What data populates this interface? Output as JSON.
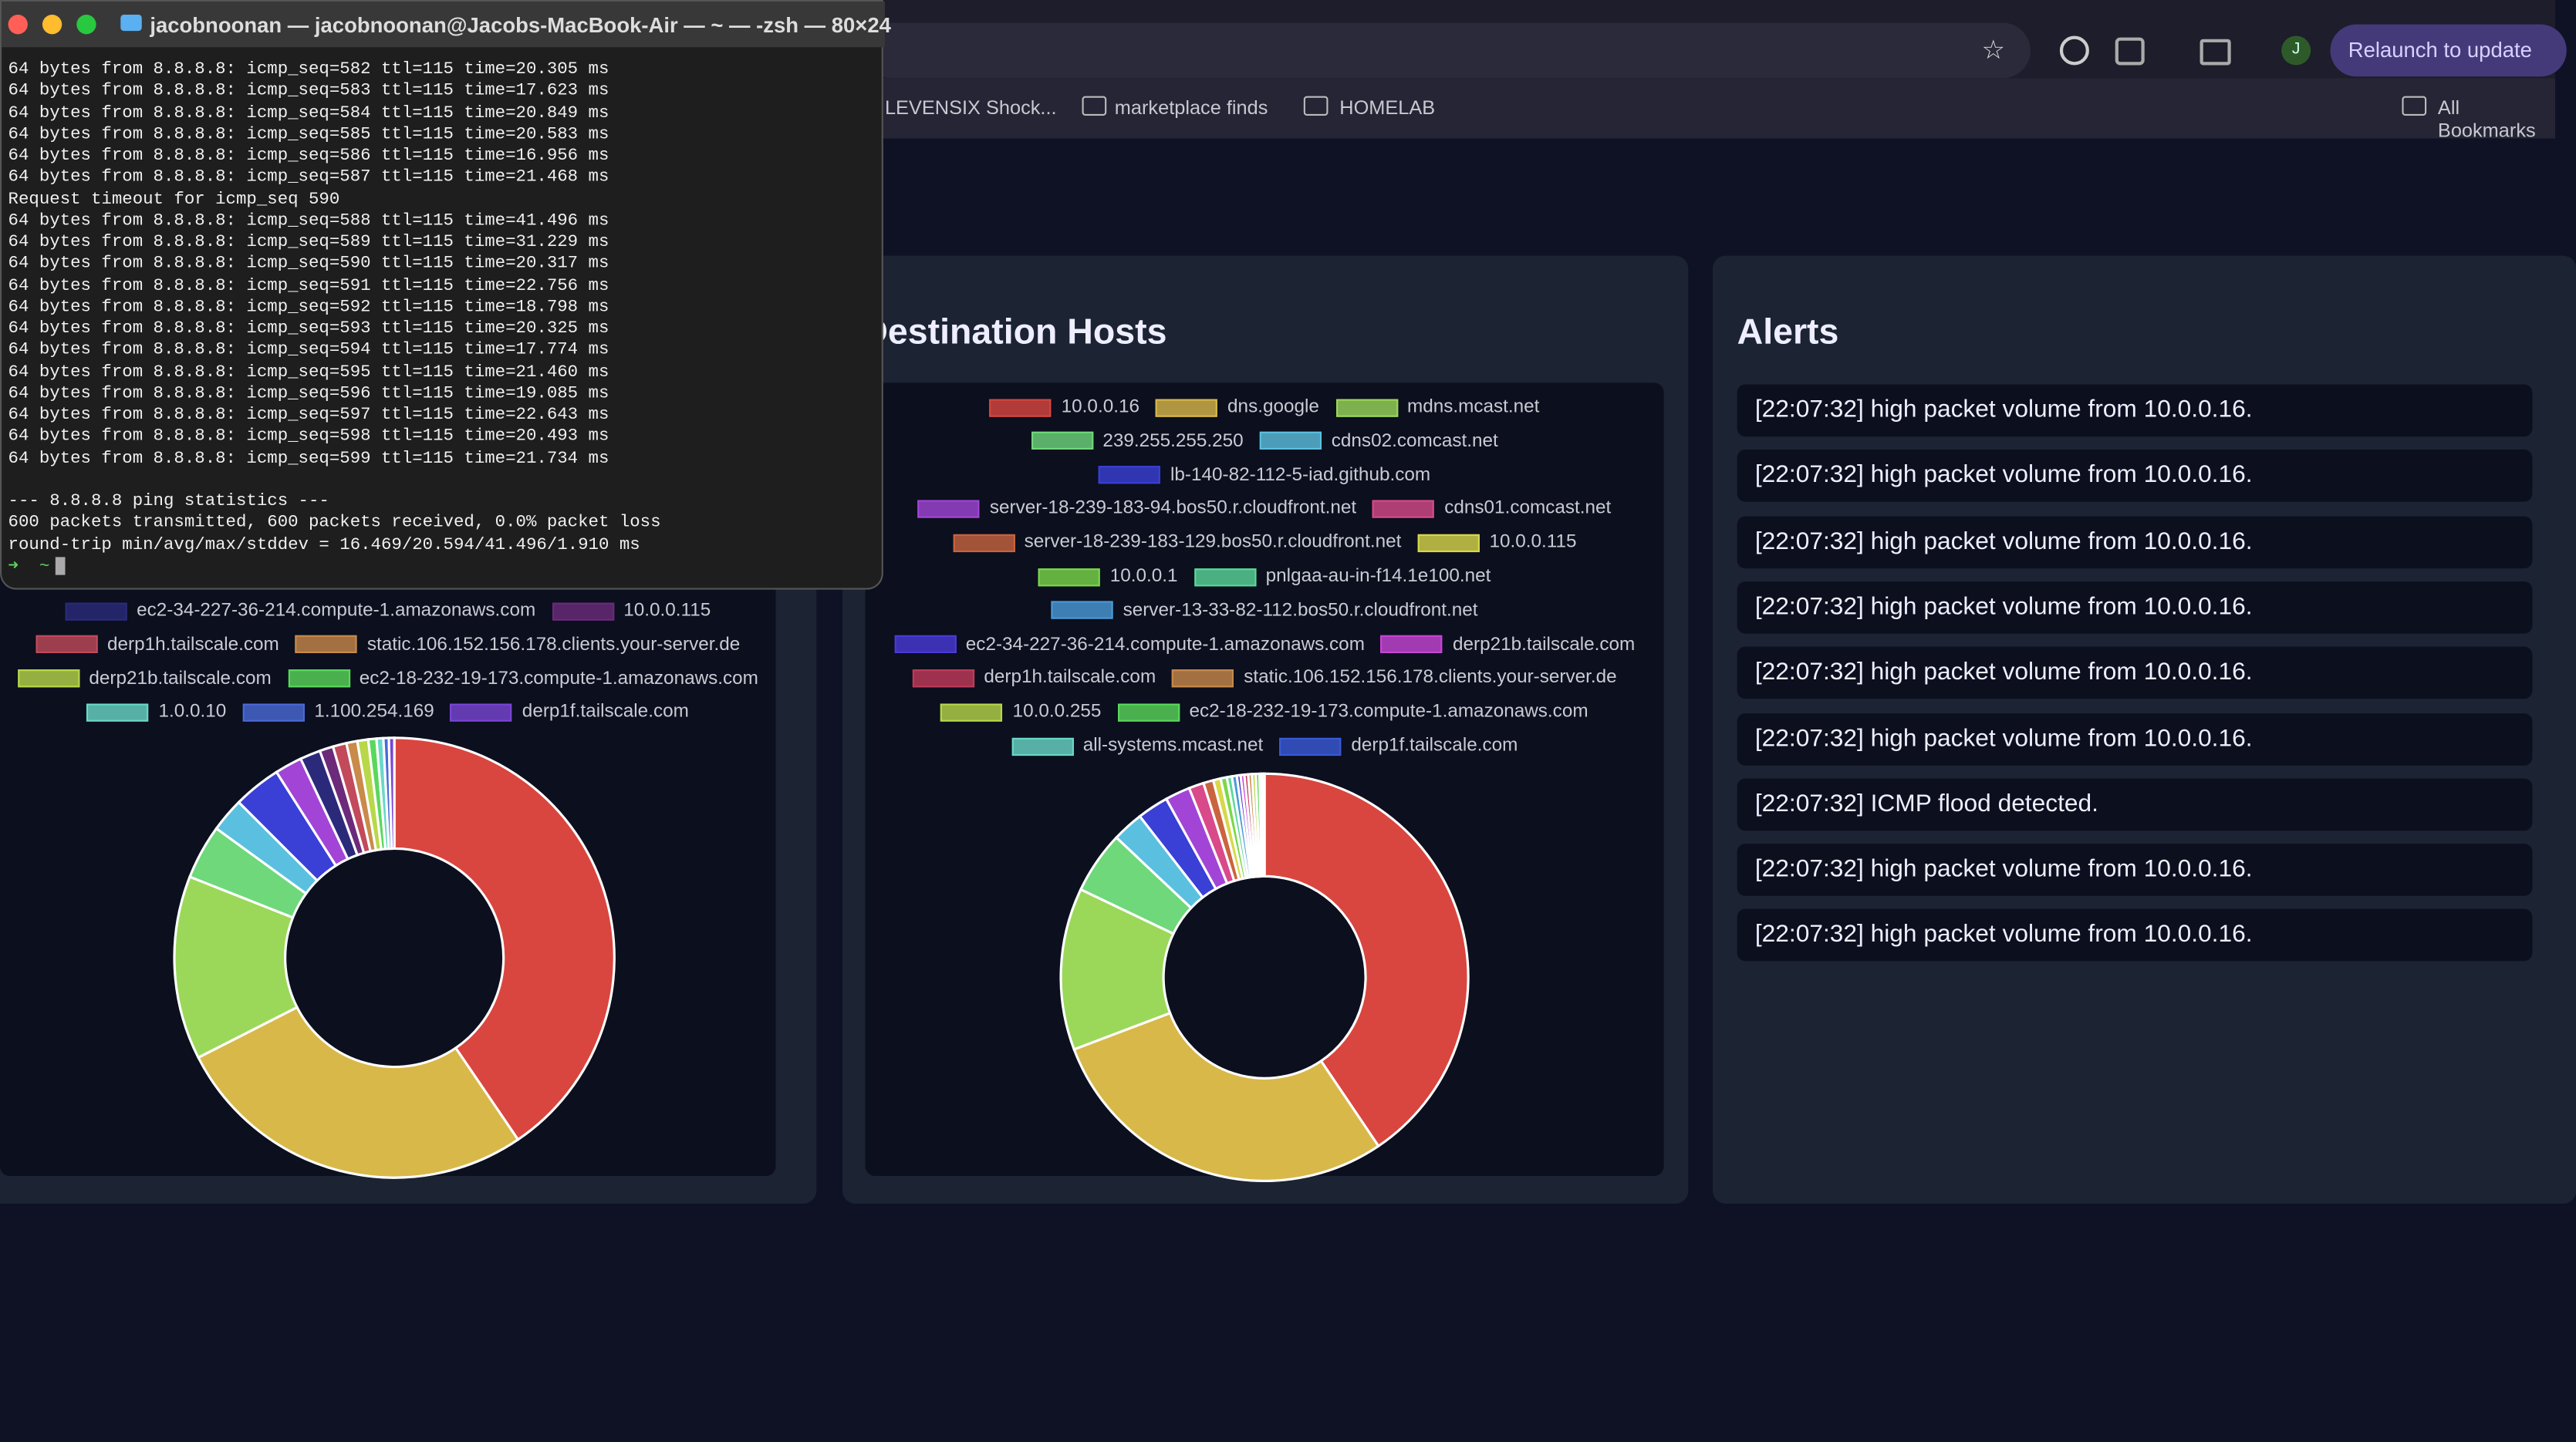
{
  "browser": {
    "bookmarks": [
      "LEVENSIX Shock...",
      "marketplace finds",
      "HOMELAB",
      "All Bookmarks"
    ],
    "avatar": "J",
    "relaunch": "Relaunch to update"
  },
  "terminal": {
    "title": "jacobnoonan — jacobnoonan@Jacobs-MacBook-Air — ~ — -zsh — 80×24",
    "lines": [
      "64 bytes from 8.8.8.8: icmp_seq=582 ttl=115 time=20.305 ms",
      "64 bytes from 8.8.8.8: icmp_seq=583 ttl=115 time=17.623 ms",
      "64 bytes from 8.8.8.8: icmp_seq=584 ttl=115 time=20.849 ms",
      "64 bytes from 8.8.8.8: icmp_seq=585 ttl=115 time=20.583 ms",
      "64 bytes from 8.8.8.8: icmp_seq=586 ttl=115 time=16.956 ms",
      "64 bytes from 8.8.8.8: icmp_seq=587 ttl=115 time=21.468 ms",
      "Request timeout for icmp_seq 590",
      "64 bytes from 8.8.8.8: icmp_seq=588 ttl=115 time=41.496 ms",
      "64 bytes from 8.8.8.8: icmp_seq=589 ttl=115 time=31.229 ms",
      "64 bytes from 8.8.8.8: icmp_seq=590 ttl=115 time=20.317 ms",
      "64 bytes from 8.8.8.8: icmp_seq=591 ttl=115 time=22.756 ms",
      "64 bytes from 8.8.8.8: icmp_seq=592 ttl=115 time=18.798 ms",
      "64 bytes from 8.8.8.8: icmp_seq=593 ttl=115 time=20.325 ms",
      "64 bytes from 8.8.8.8: icmp_seq=594 ttl=115 time=17.774 ms",
      "64 bytes from 8.8.8.8: icmp_seq=595 ttl=115 time=21.460 ms",
      "64 bytes from 8.8.8.8: icmp_seq=596 ttl=115 time=19.085 ms",
      "64 bytes from 8.8.8.8: icmp_seq=597 ttl=115 time=22.643 ms",
      "64 bytes from 8.8.8.8: icmp_seq=598 ttl=115 time=20.493 ms",
      "64 bytes from 8.8.8.8: icmp_seq=599 ttl=115 time=21.734 ms",
      "--- 8.8.8.8 ping statistics ---",
      "600 packets transmitted, 600 packets received, 0.0% packet loss",
      "round-trip min/avg/max/stddev = 16.469/20.594/41.496/1.910 ms"
    ],
    "prompt": "➜  ~"
  },
  "chart_data": [
    {
      "type": "pie",
      "categories": [
        null,
        null,
        null,
        null,
        null,
        null,
        null,
        "ec2-34-227-36-214.compute-1.amazonaws.com",
        "10.0.0.115",
        "derp1h.tailscale.com",
        "static.106.152.156.178.clients.your-server.de",
        "derp21b.tailscale.com",
        "ec2-18-232-19-173.compute-1.amazonaws.com",
        "1.0.0.10",
        "1.100.254.169",
        "derp1f.tailscale.com"
      ],
      "colors": [
        "#d9463f",
        "#d9b84a",
        "#9bd85a",
        "#6ed87a",
        "#5bc0e0",
        "#3a3fd6",
        "#a245d6",
        "#2b2a7a",
        "#6b2a7a",
        "#c24a5a",
        "#c98a4a",
        "#b8d84a",
        "#5ad85a",
        "#6ad8c8",
        "#4a6ad8",
        "#7a45d6"
      ],
      "values": [
        40.5,
        27,
        13.5,
        4,
        2.5,
        3.5,
        2,
        1.5,
        1,
        1,
        0.8,
        0.8,
        0.6,
        0.5,
        0.4,
        0.4
      ]
    },
    {
      "type": "pie",
      "title": "Destination Hosts",
      "categories": [
        "10.0.0.16",
        "dns.google",
        "mdns.mcast.net",
        "239.255.255.250",
        "cdns02.comcast.net",
        "lb-140-82-112-5-iad.github.com",
        "server-18-239-183-94.bos50.r.cloudfront.net",
        "cdns01.comcast.net",
        "server-18-239-183-129.bos50.r.cloudfront.net",
        "10.0.0.115",
        "10.0.0.1",
        "pnlgaa-au-in-f14.1e100.net",
        "server-13-33-82-112.bos50.r.cloudfront.net",
        "ec2-34-227-36-214.compute-1.amazonaws.com",
        "derp21b.tailscale.com",
        "derp1h.tailscale.com",
        "static.106.152.156.178.clients.your-server.de",
        "10.0.0.255",
        "ec2-18-232-19-173.compute-1.amazonaws.com",
        "all-systems.mcast.net",
        "derp1f.tailscale.com"
      ],
      "colors": [
        "#d9463f",
        "#d9b84a",
        "#9bd85a",
        "#6ed87a",
        "#5bc0e0",
        "#3a3fd6",
        "#a245d6",
        "#d84a8a",
        "#c9643f",
        "#d8d84a",
        "#7ad84a",
        "#5ad89a",
        "#4a9ad8",
        "#4a3ad8",
        "#c845d6",
        "#c23a5a",
        "#c98a4a",
        "#b8d84a",
        "#5ad85a",
        "#6ad8c8",
        "#3a5ad8"
      ],
      "values": [
        41,
        29,
        13,
        5,
        2.5,
        2.5,
        2,
        1.2,
        0.8,
        0.6,
        0.5,
        0.4,
        0.4,
        0.3,
        0.3,
        0.3,
        0.3,
        0.3,
        0.3,
        0.2,
        0.2
      ]
    }
  ],
  "alerts": {
    "title": "Alerts",
    "items": [
      "[22:07:32] high packet volume from 10.0.0.16.",
      "[22:07:32] high packet volume from 10.0.0.16.",
      "[22:07:32] high packet volume from 10.0.0.16.",
      "[22:07:32] high packet volume from 10.0.0.16.",
      "[22:07:32] high packet volume from 10.0.0.16.",
      "[22:07:32] high packet volume from 10.0.0.16.",
      "[22:07:32] ICMP flood detected.",
      "[22:07:32] high packet volume from 10.0.0.16.",
      "[22:07:32] high packet volume from 10.0.0.16."
    ]
  }
}
